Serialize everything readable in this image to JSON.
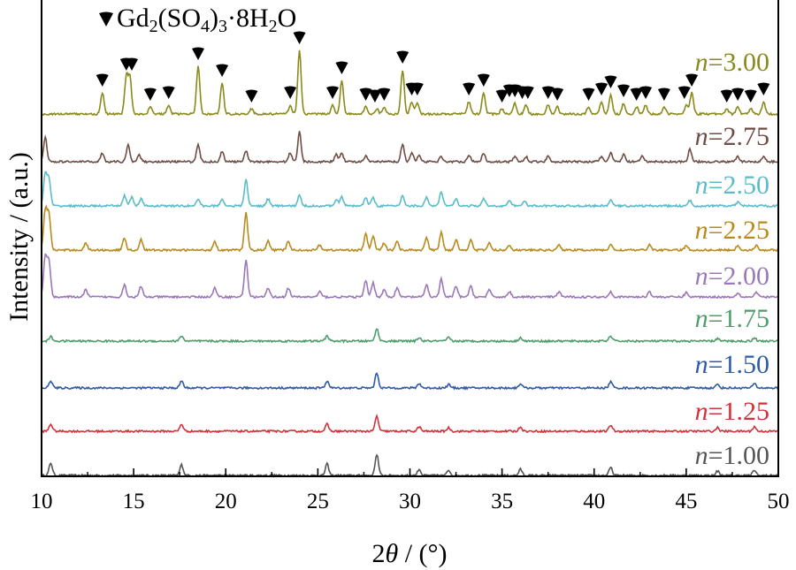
{
  "chart_data": {
    "type": "line",
    "xlabel_prefix": "2",
    "xlabel_symbol": "θ",
    "xlabel_suffix": " / (°)",
    "ylabel": "Intensity / (a.u.)",
    "xlim": [
      10,
      50
    ],
    "x_ticks": [
      10,
      15,
      20,
      25,
      30,
      35,
      40,
      45,
      50
    ],
    "x_tick_labels": [
      "10",
      "15",
      "20",
      "25",
      "30",
      "35",
      "40",
      "45",
      "50"
    ],
    "y_ticks_shown": false,
    "legend": {
      "marker": "filled-shield",
      "text_main": "Gd",
      "sub1": "2",
      "text_mid": "(SO",
      "sub2": "4",
      "text_close": ")",
      "sub3": "3",
      "text_tail": "·8H",
      "sub4": "2",
      "text_end": "O",
      "placement": "top-left"
    },
    "series": [
      {
        "name_var": "n",
        "name_value": "=1.00",
        "color": "#555555",
        "peaks": [
          [
            10.5,
            14
          ],
          [
            17.6,
            12
          ],
          [
            25.5,
            13
          ],
          [
            28.2,
            24
          ],
          [
            30.5,
            7
          ],
          [
            32.1,
            6
          ],
          [
            36.0,
            7
          ],
          [
            40.9,
            9
          ],
          [
            46.7,
            5
          ],
          [
            48.7,
            6
          ]
        ]
      },
      {
        "name_var": "n",
        "name_value": "=1.25",
        "color": "#d2323c",
        "peaks": [
          [
            10.5,
            8
          ],
          [
            17.6,
            8
          ],
          [
            25.5,
            8
          ],
          [
            28.2,
            17
          ],
          [
            30.5,
            5
          ],
          [
            32.1,
            4
          ],
          [
            36.0,
            5
          ],
          [
            40.9,
            7
          ],
          [
            46.7,
            4
          ],
          [
            48.7,
            5
          ]
        ]
      },
      {
        "name_var": "n",
        "name_value": "=1.50",
        "color": "#2e5aa8",
        "peaks": [
          [
            10.5,
            8
          ],
          [
            17.6,
            8
          ],
          [
            25.5,
            8
          ],
          [
            28.2,
            17
          ],
          [
            30.5,
            5
          ],
          [
            32.1,
            4
          ],
          [
            36.0,
            5
          ],
          [
            40.9,
            7
          ],
          [
            46.7,
            4
          ],
          [
            48.7,
            5
          ]
        ]
      },
      {
        "name_var": "n",
        "name_value": "=1.75",
        "color": "#4e9e6c",
        "peaks": [
          [
            10.5,
            5
          ],
          [
            17.6,
            6
          ],
          [
            25.5,
            6
          ],
          [
            28.2,
            14
          ],
          [
            30.5,
            4
          ],
          [
            32.1,
            4
          ],
          [
            36.0,
            4
          ],
          [
            40.9,
            6
          ],
          [
            46.7,
            3
          ],
          [
            48.7,
            4
          ]
        ]
      },
      {
        "name_var": "n",
        "name_value": "=2.00",
        "color": "#9b78b8",
        "peaks": [
          [
            10.2,
            45
          ],
          [
            10.4,
            40
          ],
          [
            12.4,
            8
          ],
          [
            14.5,
            14
          ],
          [
            15.4,
            12
          ],
          [
            19.4,
            10
          ],
          [
            21.1,
            42
          ],
          [
            22.3,
            10
          ],
          [
            23.4,
            10
          ],
          [
            25.1,
            6
          ],
          [
            27.6,
            18
          ],
          [
            28.0,
            16
          ],
          [
            28.6,
            8
          ],
          [
            29.3,
            10
          ],
          [
            30.9,
            14
          ],
          [
            31.7,
            20
          ],
          [
            32.5,
            12
          ],
          [
            33.3,
            12
          ],
          [
            34.3,
            8
          ],
          [
            35.4,
            6
          ],
          [
            38.1,
            6
          ],
          [
            40.9,
            6
          ],
          [
            43.0,
            6
          ],
          [
            45.0,
            5
          ],
          [
            47.8,
            5
          ],
          [
            48.8,
            5
          ]
        ]
      },
      {
        "name_var": "n",
        "name_value": "=2.25",
        "color": "#b98a1c",
        "peaks": [
          [
            10.2,
            45
          ],
          [
            10.4,
            40
          ],
          [
            12.4,
            8
          ],
          [
            14.5,
            14
          ],
          [
            15.4,
            12
          ],
          [
            19.4,
            10
          ],
          [
            21.1,
            42
          ],
          [
            22.3,
            10
          ],
          [
            23.4,
            10
          ],
          [
            25.1,
            6
          ],
          [
            27.6,
            18
          ],
          [
            28.0,
            16
          ],
          [
            28.6,
            8
          ],
          [
            29.3,
            10
          ],
          [
            30.9,
            14
          ],
          [
            31.7,
            20
          ],
          [
            32.5,
            12
          ],
          [
            33.3,
            12
          ],
          [
            34.3,
            8
          ],
          [
            35.4,
            6
          ],
          [
            38.1,
            6
          ],
          [
            40.9,
            6
          ],
          [
            43.0,
            6
          ],
          [
            45.0,
            5
          ],
          [
            47.8,
            5
          ],
          [
            48.8,
            5
          ]
        ]
      },
      {
        "name_var": "n",
        "name_value": "=2.50",
        "color": "#5bbcc9",
        "peaks": [
          [
            10.2,
            36
          ],
          [
            10.4,
            30
          ],
          [
            14.5,
            12
          ],
          [
            14.9,
            10
          ],
          [
            15.4,
            8
          ],
          [
            18.5,
            8
          ],
          [
            19.8,
            8
          ],
          [
            21.1,
            30
          ],
          [
            22.3,
            8
          ],
          [
            24.0,
            12
          ],
          [
            26.0,
            8
          ],
          [
            26.3,
            10
          ],
          [
            27.6,
            10
          ],
          [
            28.0,
            10
          ],
          [
            29.6,
            12
          ],
          [
            30.9,
            10
          ],
          [
            31.7,
            16
          ],
          [
            32.5,
            8
          ],
          [
            34.0,
            8
          ],
          [
            35.4,
            6
          ],
          [
            36.2,
            6
          ],
          [
            40.9,
            7
          ],
          [
            45.2,
            6
          ],
          [
            47.8,
            4
          ]
        ]
      },
      {
        "name_var": "n",
        "name_value": "=2.75",
        "color": "#704c44",
        "peaks": [
          [
            10.2,
            28
          ],
          [
            13.3,
            10
          ],
          [
            14.7,
            20
          ],
          [
            15.3,
            8
          ],
          [
            18.5,
            20
          ],
          [
            19.8,
            12
          ],
          [
            21.1,
            12
          ],
          [
            23.5,
            10
          ],
          [
            24.0,
            34
          ],
          [
            26.0,
            8
          ],
          [
            26.3,
            10
          ],
          [
            27.6,
            6
          ],
          [
            29.6,
            20
          ],
          [
            30.1,
            10
          ],
          [
            30.5,
            8
          ],
          [
            31.7,
            6
          ],
          [
            33.2,
            8
          ],
          [
            34.0,
            10
          ],
          [
            35.7,
            6
          ],
          [
            36.3,
            6
          ],
          [
            37.5,
            6
          ],
          [
            40.4,
            6
          ],
          [
            40.9,
            10
          ],
          [
            41.6,
            8
          ],
          [
            42.6,
            6
          ],
          [
            45.2,
            14
          ],
          [
            47.8,
            6
          ],
          [
            49.2,
            6
          ]
        ]
      },
      {
        "name_var": "n",
        "name_value": "=3.00",
        "color": "#8a8a1c",
        "peaks": [
          [
            13.3,
            24
          ],
          [
            14.6,
            42
          ],
          [
            14.8,
            40
          ],
          [
            15.9,
            8
          ],
          [
            16.9,
            10
          ],
          [
            18.5,
            54
          ],
          [
            19.8,
            35
          ],
          [
            21.4,
            6
          ],
          [
            23.5,
            10
          ],
          [
            24.0,
            72
          ],
          [
            25.8,
            10
          ],
          [
            26.3,
            38
          ],
          [
            27.6,
            8
          ],
          [
            28.2,
            6
          ],
          [
            28.6,
            8
          ],
          [
            29.6,
            50
          ],
          [
            30.1,
            14
          ],
          [
            30.4,
            12
          ],
          [
            33.2,
            14
          ],
          [
            34.0,
            24
          ],
          [
            35.0,
            6
          ],
          [
            35.7,
            12
          ],
          [
            36.3,
            10
          ],
          [
            37.5,
            10
          ],
          [
            38.0,
            8
          ],
          [
            39.7,
            8
          ],
          [
            40.4,
            14
          ],
          [
            40.9,
            22
          ],
          [
            41.6,
            12
          ],
          [
            42.3,
            8
          ],
          [
            42.8,
            10
          ],
          [
            43.8,
            8
          ],
          [
            45.0,
            10
          ],
          [
            45.3,
            24
          ],
          [
            47.2,
            6
          ],
          [
            47.8,
            8
          ],
          [
            48.5,
            6
          ],
          [
            49.2,
            14
          ]
        ],
        "markers_2theta": [
          13.3,
          14.6,
          14.9,
          15.9,
          16.9,
          18.5,
          19.8,
          21.4,
          23.5,
          24.0,
          25.8,
          26.3,
          27.6,
          28.1,
          28.6,
          29.6,
          30.1,
          30.4,
          33.2,
          34.0,
          35.0,
          35.4,
          35.7,
          36.1,
          36.4,
          37.5,
          38.0,
          39.7,
          40.4,
          40.9,
          41.6,
          42.3,
          42.8,
          43.8,
          44.9,
          45.3,
          47.2,
          47.8,
          48.5,
          49.2
        ]
      }
    ]
  }
}
